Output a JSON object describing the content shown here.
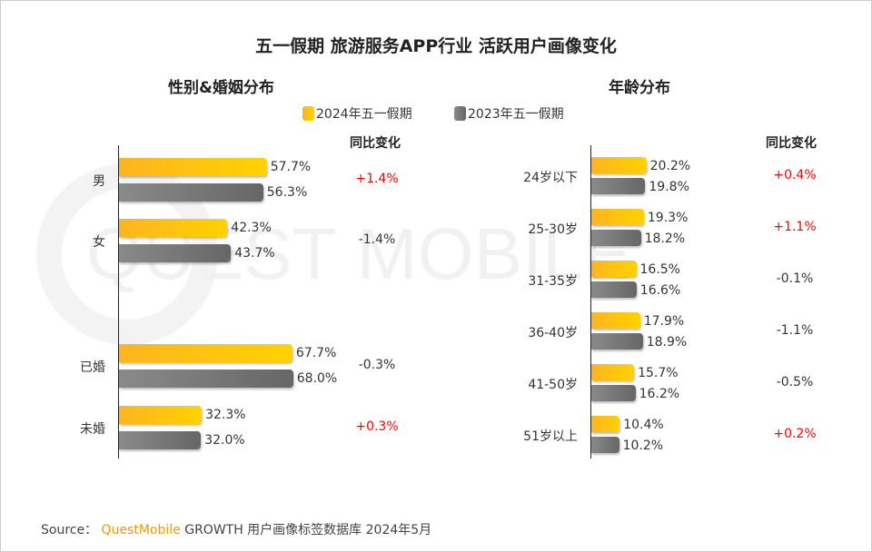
{
  "title": "五一假期 旅游服务APP行业 活跃用户画像变化",
  "watermark": "QUEST MOBILE",
  "legend": [
    "2024年五一假期",
    "2023年五一假期"
  ],
  "colors": {
    "y2024": "#ffc000",
    "y2023": "#7f7f7f",
    "positive": "#ff0000",
    "neutral": "#333333"
  },
  "chart_data": [
    {
      "type": "bar",
      "orientation": "horizontal",
      "title": "性别&婚姻分布",
      "change_header": "同比变化",
      "categories": [
        "男",
        "女",
        "已婚",
        "未婚"
      ],
      "series": [
        {
          "name": "2024年五一假期",
          "values": [
            57.7,
            42.3,
            67.7,
            32.3
          ]
        },
        {
          "name": "2023年五一假期",
          "values": [
            56.3,
            43.7,
            68.0,
            32.0
          ]
        }
      ],
      "labels24": [
        "57.7%",
        "42.3%",
        "67.7%",
        "32.3%"
      ],
      "labels23": [
        "56.3%",
        "43.7%",
        "68.0%",
        "32.0%"
      ],
      "change": [
        "+1.4%",
        "-1.4%",
        "-0.3%",
        "+0.3%"
      ],
      "unit": "%"
    },
    {
      "type": "bar",
      "orientation": "horizontal",
      "title": "年龄分布",
      "change_header": "同比变化",
      "categories": [
        "24岁以下",
        "25-30岁",
        "31-35岁",
        "36-40岁",
        "41-50岁",
        "51岁以上"
      ],
      "series": [
        {
          "name": "2024年五一假期",
          "values": [
            20.2,
            19.3,
            16.5,
            17.9,
            15.7,
            10.4
          ]
        },
        {
          "name": "2023年五一假期",
          "values": [
            19.8,
            18.2,
            16.6,
            18.9,
            16.2,
            10.2
          ]
        }
      ],
      "labels24": [
        "20.2%",
        "19.3%",
        "16.5%",
        "17.9%",
        "15.7%",
        "10.4%"
      ],
      "labels23": [
        "19.8%",
        "18.2%",
        "16.6%",
        "18.9%",
        "16.2%",
        "10.2%"
      ],
      "change": [
        "+0.4%",
        "+1.1%",
        "-0.1%",
        "-1.1%",
        "-0.5%",
        "+0.2%"
      ],
      "unit": "%"
    }
  ],
  "source": {
    "prefix": "Source：",
    "brand": "QuestMobile",
    "text": "GROWTH 用户画像标签数据库 2024年5月"
  }
}
